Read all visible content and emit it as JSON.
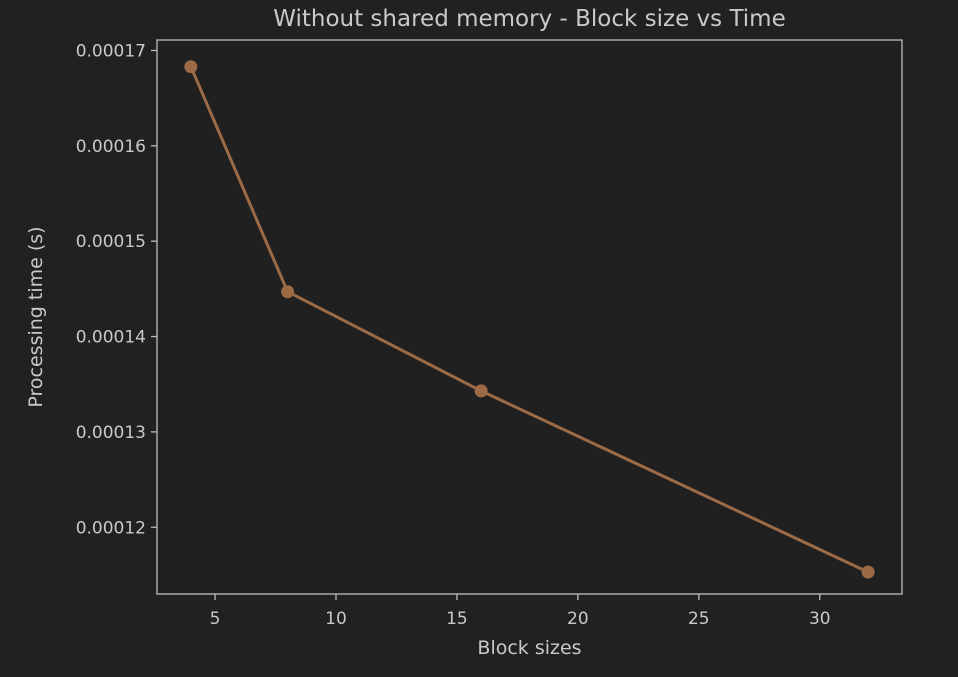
{
  "colors": {
    "background": "#202122",
    "plot_background": "#202020",
    "axis": "#bdbdbd",
    "text": "#c9c9c9",
    "series": "#9c6b45"
  },
  "chart_data": {
    "type": "line",
    "title": "Without shared memory - Block size vs Time",
    "xlabel": "Block sizes",
    "ylabel": "Processing time (s)",
    "grid": false,
    "xlim": [
      2.6,
      33.4
    ],
    "ylim": [
      0.000113,
      0.0001711
    ],
    "xticks": [
      5,
      10,
      15,
      20,
      25,
      30
    ],
    "xtick_labels": [
      "5",
      "10",
      "15",
      "20",
      "25",
      "30"
    ],
    "yticks": [
      0.00012,
      0.00013,
      0.00014,
      0.00015,
      0.00016,
      0.00017
    ],
    "ytick_labels": [
      "0.00012",
      "0.00013",
      "0.00014",
      "0.00015",
      "0.00016",
      "0.00017"
    ],
    "series": [
      {
        "x": [
          4,
          8,
          16,
          32
        ],
        "y": [
          0.0001683,
          0.0001447,
          0.0001343,
          0.0001153
        ],
        "marker": "circle"
      }
    ]
  }
}
